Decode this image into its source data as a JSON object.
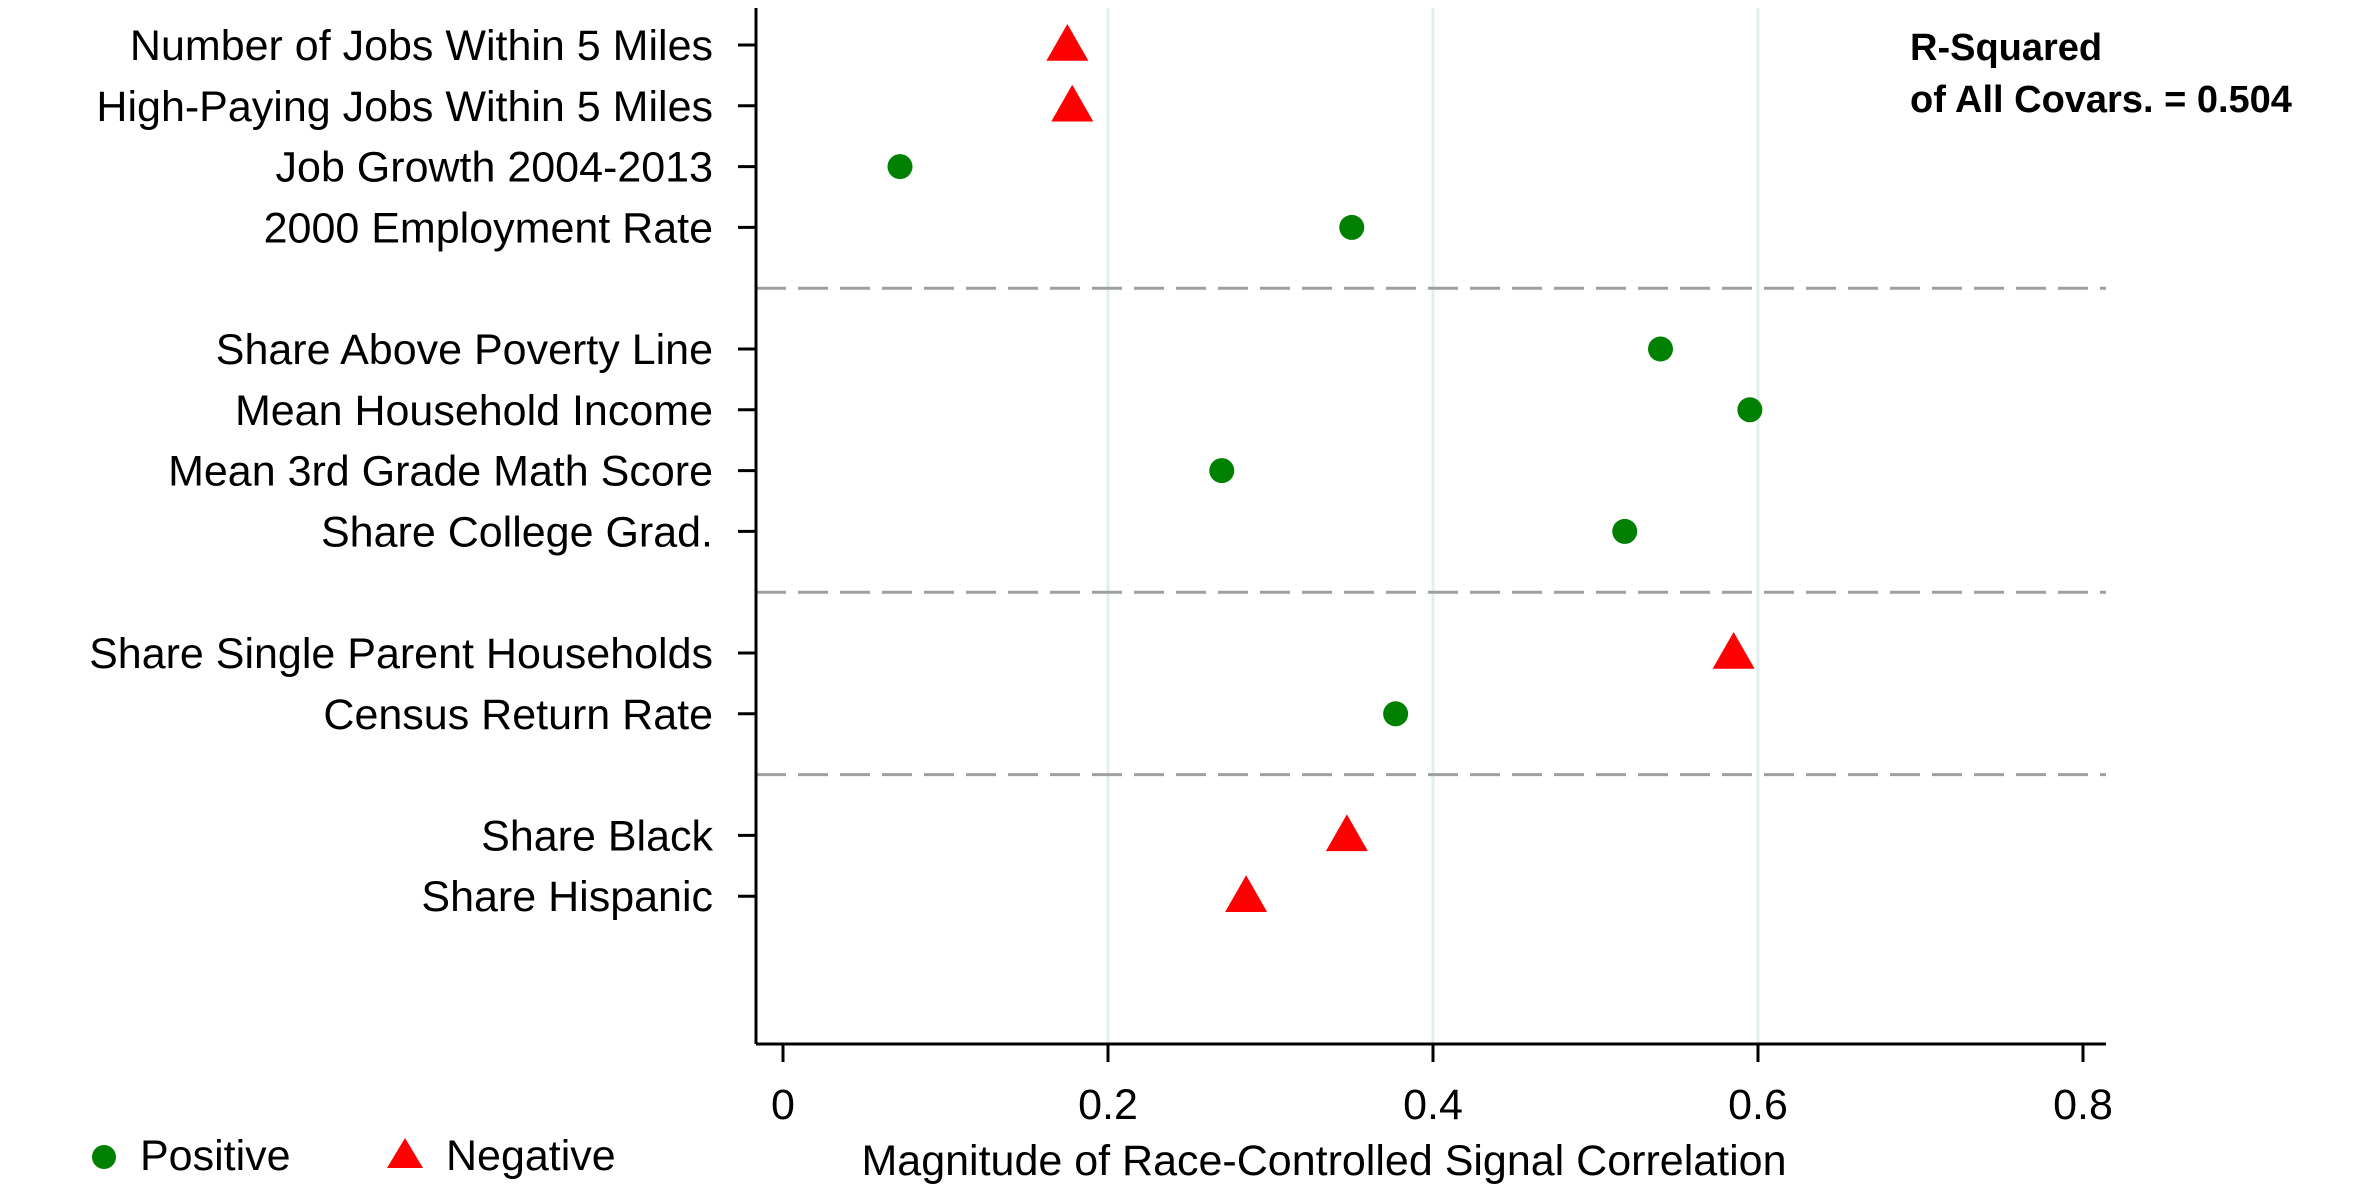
{
  "chart_data": {
    "type": "scatter",
    "xlabel": "Magnitude of Race-Controlled Signal Correlation",
    "xlim": [
      0,
      0.8
    ],
    "xticks": [
      0,
      0.2,
      0.4,
      0.6,
      0.8
    ],
    "tick_labels": [
      "0",
      "0.2",
      "0.4",
      "0.6",
      "0.8"
    ],
    "annotation": {
      "line1": "R-Squared",
      "line2": "of All Covars. = 0.504"
    },
    "legend": {
      "placement": "bottom-left",
      "entries": [
        {
          "label": "Positive",
          "marker": "circle",
          "color": "#008000"
        },
        {
          "label": "Negative",
          "marker": "triangle",
          "color": "#ff0000"
        }
      ]
    },
    "groups": [
      {
        "items": [
          {
            "label": "Number of Jobs Within 5 Miles",
            "value": 0.175,
            "sign": "negative"
          },
          {
            "label": "High-Paying Jobs Within 5 Miles",
            "value": 0.178,
            "sign": "negative"
          },
          {
            "label": "Job Growth 2004-2013",
            "value": 0.072,
            "sign": "positive"
          },
          {
            "label": "2000 Employment Rate",
            "value": 0.35,
            "sign": "positive"
          }
        ]
      },
      {
        "items": [
          {
            "label": "Share Above Poverty Line",
            "value": 0.54,
            "sign": "positive"
          },
          {
            "label": "Mean Household Income",
            "value": 0.595,
            "sign": "positive"
          },
          {
            "label": "Mean 3rd Grade Math Score",
            "value": 0.27,
            "sign": "positive"
          },
          {
            "label": "Share College Grad.",
            "value": 0.518,
            "sign": "positive"
          }
        ]
      },
      {
        "items": [
          {
            "label": "Share Single Parent Households",
            "value": 0.585,
            "sign": "negative"
          },
          {
            "label": "Census Return Rate",
            "value": 0.377,
            "sign": "positive"
          }
        ]
      },
      {
        "items": [
          {
            "label": "Share Black",
            "value": 0.347,
            "sign": "negative"
          },
          {
            "label": "Share Hispanic",
            "value": 0.285,
            "sign": "negative"
          }
        ]
      }
    ],
    "grid": true,
    "colors": {
      "positive": "#008000",
      "negative": "#ff0000",
      "grid": "#e3eeee",
      "separator": "#a0a0a0"
    }
  }
}
